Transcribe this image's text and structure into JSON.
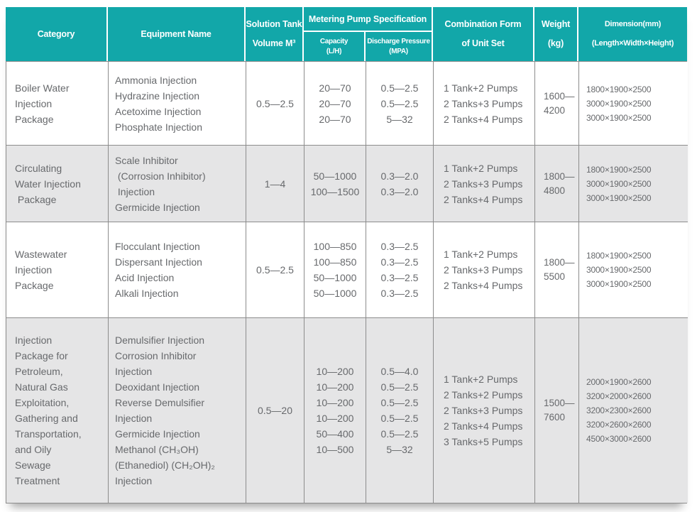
{
  "colors": {
    "header_bg": "#12a7a9",
    "header_text": "#ffffff",
    "alt_row_bg": "#e5e5e6",
    "border": "#8c8c8c",
    "body_text": "#67696c"
  },
  "table": {
    "header": {
      "category": "Category",
      "equipment": "Equipment Name",
      "solution_tank": [
        "Solution Tank",
        "Volume M³"
      ],
      "metering_group": "Metering Pump Specification",
      "capacity": [
        "Capacity",
        "(L/H)"
      ],
      "discharge": [
        "Discharge Pressure",
        "(MPA)"
      ],
      "combination": [
        "Combination Form",
        "of Unit Set"
      ],
      "weight": [
        "Weight",
        "(kg)"
      ],
      "dimension": [
        "Dimension(mm)",
        "(Length×Width×Height)"
      ]
    },
    "rows": [
      {
        "category": [
          "Boiler Water",
          "Injection",
          "Package"
        ],
        "equipment": [
          "Ammonia Injection",
          "Hydrazine Injection",
          "Acetoxime Injection",
          "Phosphate Injection"
        ],
        "solution_tank": "0.5—2.5",
        "capacity": [
          "20—70",
          "20—70",
          "20—70"
        ],
        "discharge": [
          "0.5—2.5",
          "0.5—2.5",
          "5—32"
        ],
        "combination": [
          "1 Tank+2 Pumps",
          "2 Tanks+3 Pumps",
          "2 Tanks+4 Pumps"
        ],
        "weight": [
          "1600—",
          "4200"
        ],
        "dimension": [
          "1800×1900×2500",
          "3000×1900×2500",
          "3000×1900×2500"
        ]
      },
      {
        "category": [
          "Circulating",
          "Water Injection",
          " Package"
        ],
        "equipment": [
          "Scale Inhibitor",
          " (Corrosion Inhibitor)",
          " Injection",
          "Germicide Injection"
        ],
        "solution_tank": "1—4",
        "capacity": [
          "50—1000",
          "100—1500"
        ],
        "discharge": [
          "0.3—2.0",
          "0.3—2.0"
        ],
        "combination": [
          "1 Tank+2 Pumps",
          "2 Tanks+3 Pumps",
          "2 Tanks+4 Pumps"
        ],
        "weight": [
          "1800—",
          "4800"
        ],
        "dimension": [
          "1800×1900×2500",
          "3000×1900×2500",
          "3000×1900×2500"
        ]
      },
      {
        "category": [
          "Wastewater",
          "Injection",
          "Package"
        ],
        "equipment": [
          "Flocculant Injection",
          "Dispersant Injection",
          "Acid Injection",
          "Alkali Injection"
        ],
        "solution_tank": "0.5—2.5",
        "capacity": [
          "100—850",
          "100—850",
          "50—1000",
          "50—1000"
        ],
        "discharge": [
          "0.3—2.5",
          "0.3—2.5",
          "0.3—2.5",
          "0.3—2.5"
        ],
        "combination": [
          "1 Tank+2 Pumps",
          "2 Tanks+3 Pumps",
          "2 Tanks+4 Pumps"
        ],
        "weight": [
          "1800—",
          "5500"
        ],
        "dimension": [
          "1800×1900×2500",
          "3000×1900×2500",
          "3000×1900×2500"
        ]
      },
      {
        "category": [
          "Injection",
          "Package for",
          "Petroleum,",
          "Natural Gas",
          "Exploitation,",
          "Gathering and",
          "Transportation,",
          "and Oily",
          "Sewage",
          "Treatment"
        ],
        "equipment": [
          "Demulsifier Injection",
          "Corrosion Inhibitor",
          "Injection",
          "Deoxidant Injection",
          "Reverse Demulsifier",
          "Injection",
          "Germicide Injection",
          "Methanol (CH₃OH)",
          "(Ethanediol) (CH₂OH)₂",
          "Injection"
        ],
        "solution_tank": "0.5—20",
        "capacity": [
          "10—200",
          "10—200",
          "10—200",
          "10—200",
          "50—400",
          "10—500"
        ],
        "discharge": [
          "0.5—4.0",
          "0.5—2.5",
          "0.5—2.5",
          "0.5—2.5",
          "0.5—2.5",
          "5—32"
        ],
        "combination": [
          "1 Tank+2 Pumps",
          "2 Tanks+2 Pumps",
          "2 Tanks+3 Pumps",
          "2 Tanks+4 Pumps",
          "3 Tanks+5 Pumps"
        ],
        "weight": [
          "1500—",
          "7600"
        ],
        "dimension": [
          "2000×1900×2600",
          "3200×2000×2600",
          "3200×2300×2600",
          "3200×2600×2600",
          "4500×3000×2600"
        ]
      }
    ]
  }
}
